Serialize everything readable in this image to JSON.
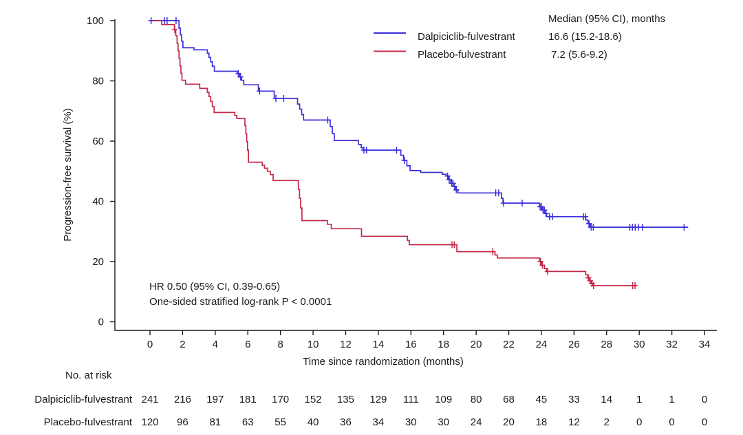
{
  "chart_data": {
    "type": "line",
    "subtype": "kaplan-meier-step",
    "title": "",
    "xlabel": "Time since randomization (months)",
    "ylabel": "Progression-free survival (%)",
    "xlim": [
      0,
      34
    ],
    "ylim": [
      0,
      100
    ],
    "x_ticks": [
      0,
      2,
      4,
      6,
      8,
      10,
      12,
      14,
      16,
      18,
      20,
      22,
      24,
      26,
      28,
      30,
      32,
      34
    ],
    "y_ticks": [
      0,
      20,
      40,
      60,
      80,
      100
    ],
    "grid": "off",
    "legend_position": "top-right-inside",
    "legend_header": "Median (95% CI), months",
    "axis_color": "#1a1a1a",
    "series": [
      {
        "name": "Dalpiciclib-fulvestrant",
        "median": "16.6 (15.2-18.6)",
        "color": "#3a2fd9",
        "steps": [
          [
            0,
            100
          ],
          [
            1.78,
            97.5
          ],
          [
            1.86,
            95.3
          ],
          [
            1.94,
            93.2
          ],
          [
            2.02,
            91.0
          ],
          [
            2.7,
            90.3
          ],
          [
            3.52,
            89.2
          ],
          [
            3.62,
            87.8
          ],
          [
            3.72,
            86.3
          ],
          [
            3.82,
            84.9
          ],
          [
            3.95,
            83.2
          ],
          [
            5.35,
            82.4
          ],
          [
            5.5,
            81.3
          ],
          [
            5.62,
            80.2
          ],
          [
            5.75,
            78.7
          ],
          [
            6.65,
            76.6
          ],
          [
            7.62,
            74.2
          ],
          [
            9.05,
            72.3
          ],
          [
            9.18,
            70.6
          ],
          [
            9.3,
            68.8
          ],
          [
            9.42,
            67.0
          ],
          [
            11.05,
            64.8
          ],
          [
            11.18,
            62.5
          ],
          [
            11.3,
            60.2
          ],
          [
            12.78,
            58.9
          ],
          [
            12.95,
            57.8
          ],
          [
            13.08,
            57.0
          ],
          [
            15.38,
            55.3
          ],
          [
            15.55,
            53.6
          ],
          [
            15.75,
            51.8
          ],
          [
            15.95,
            50.2
          ],
          [
            16.6,
            49.6
          ],
          [
            17.92,
            49.0
          ],
          [
            18.15,
            48.4
          ],
          [
            18.3,
            47.2
          ],
          [
            18.45,
            46.0
          ],
          [
            18.6,
            44.9
          ],
          [
            18.75,
            43.8
          ],
          [
            18.88,
            42.8
          ],
          [
            21.55,
            41.0
          ],
          [
            21.65,
            39.4
          ],
          [
            23.88,
            38.2
          ],
          [
            24.05,
            37.1
          ],
          [
            24.2,
            36.0
          ],
          [
            24.32,
            34.9
          ],
          [
            26.72,
            33.8
          ],
          [
            26.85,
            32.6
          ],
          [
            26.98,
            31.4
          ],
          [
            33.0,
            31.4
          ]
        ],
        "censors": [
          [
            0.07,
            100
          ],
          [
            0.9,
            100
          ],
          [
            1.05,
            100
          ],
          [
            1.6,
            100
          ],
          [
            5.42,
            82.4
          ],
          [
            5.55,
            81.3
          ],
          [
            6.72,
            76.6
          ],
          [
            7.72,
            74.2
          ],
          [
            8.2,
            74.2
          ],
          [
            10.9,
            67.0
          ],
          [
            13.12,
            57.0
          ],
          [
            13.28,
            57.0
          ],
          [
            15.12,
            57.0
          ],
          [
            15.6,
            53.6
          ],
          [
            18.25,
            48.4
          ],
          [
            18.35,
            47.2
          ],
          [
            18.5,
            46.0
          ],
          [
            18.58,
            46.0
          ],
          [
            18.68,
            44.9
          ],
          [
            18.78,
            43.8
          ],
          [
            21.2,
            42.8
          ],
          [
            21.38,
            42.8
          ],
          [
            21.68,
            39.4
          ],
          [
            22.82,
            39.4
          ],
          [
            23.92,
            38.2
          ],
          [
            24.0,
            38.2
          ],
          [
            24.1,
            37.1
          ],
          [
            24.18,
            37.1
          ],
          [
            24.28,
            36.0
          ],
          [
            24.5,
            34.9
          ],
          [
            24.68,
            34.9
          ],
          [
            26.58,
            34.9
          ],
          [
            26.7,
            34.9
          ],
          [
            26.92,
            32.6
          ],
          [
            27.05,
            31.4
          ],
          [
            27.18,
            31.4
          ],
          [
            29.42,
            31.4
          ],
          [
            29.58,
            31.4
          ],
          [
            29.75,
            31.4
          ],
          [
            29.95,
            31.4
          ],
          [
            30.2,
            31.4
          ],
          [
            32.75,
            31.4
          ]
        ]
      },
      {
        "name": "Placebo-fulvestrant",
        "median": "7.2 (5.6-9.2)",
        "color": "#c42847",
        "steps": [
          [
            0,
            100
          ],
          [
            0.72,
            98.7
          ],
          [
            1.5,
            97.0
          ],
          [
            1.58,
            95.0
          ],
          [
            1.66,
            92.5
          ],
          [
            1.72,
            90.0
          ],
          [
            1.78,
            87.5
          ],
          [
            1.84,
            85.0
          ],
          [
            1.9,
            82.5
          ],
          [
            1.96,
            80.2
          ],
          [
            2.18,
            78.9
          ],
          [
            3.05,
            77.5
          ],
          [
            3.52,
            76.2
          ],
          [
            3.62,
            74.8
          ],
          [
            3.72,
            73.2
          ],
          [
            3.82,
            71.5
          ],
          [
            3.93,
            69.5
          ],
          [
            5.2,
            68.5
          ],
          [
            5.32,
            67.5
          ],
          [
            5.82,
            65.2
          ],
          [
            5.88,
            62.5
          ],
          [
            5.93,
            59.8
          ],
          [
            5.98,
            57.0
          ],
          [
            6.04,
            53.0
          ],
          [
            6.88,
            52.0
          ],
          [
            7.02,
            51.0
          ],
          [
            7.2,
            50.0
          ],
          [
            7.38,
            48.9
          ],
          [
            7.55,
            46.9
          ],
          [
            9.1,
            44.0
          ],
          [
            9.17,
            41.0
          ],
          [
            9.24,
            37.8
          ],
          [
            9.32,
            33.6
          ],
          [
            10.88,
            32.4
          ],
          [
            11.12,
            30.9
          ],
          [
            12.97,
            28.4
          ],
          [
            15.78,
            27.0
          ],
          [
            15.9,
            25.6
          ],
          [
            18.82,
            23.3
          ],
          [
            21.15,
            22.2
          ],
          [
            21.3,
            21.2
          ],
          [
            23.88,
            20.0
          ],
          [
            24.02,
            18.8
          ],
          [
            24.18,
            17.7
          ],
          [
            24.32,
            16.7
          ],
          [
            26.72,
            15.6
          ],
          [
            26.84,
            14.6
          ],
          [
            26.95,
            13.6
          ],
          [
            27.06,
            12.7
          ],
          [
            27.16,
            12.0
          ],
          [
            29.85,
            12.0
          ]
        ],
        "censors": [
          [
            1.52,
            97.0
          ],
          [
            18.52,
            25.6
          ],
          [
            18.66,
            25.6
          ],
          [
            21.02,
            23.3
          ],
          [
            23.95,
            20.0
          ],
          [
            24.06,
            18.8
          ],
          [
            24.38,
            16.7
          ],
          [
            26.88,
            14.6
          ],
          [
            26.99,
            13.6
          ],
          [
            27.1,
            12.7
          ],
          [
            27.2,
            12.0
          ],
          [
            29.6,
            12.0
          ],
          [
            29.74,
            12.0
          ]
        ]
      }
    ],
    "annotations": [
      "HR 0.50 (95% CI, 0.39-0.65)",
      "One-sided stratified log-rank P < 0.0001"
    ],
    "risk_table": {
      "title": "No. at risk",
      "rows": [
        {
          "label": "Dalpiciclib-fulvestrant",
          "counts": [
            "241",
            "216",
            "197",
            "181",
            "170",
            "152",
            "135",
            "129",
            "111",
            "109",
            "80",
            "68",
            "45",
            "33",
            "14",
            "1",
            "1",
            "0"
          ]
        },
        {
          "label": "Placebo-fulvestrant",
          "counts": [
            "120",
            "96",
            "81",
            "63",
            "55",
            "40",
            "36",
            "34",
            "30",
            "30",
            "24",
            "20",
            "18",
            "12",
            "2",
            "0",
            "0",
            "0"
          ]
        }
      ]
    }
  }
}
